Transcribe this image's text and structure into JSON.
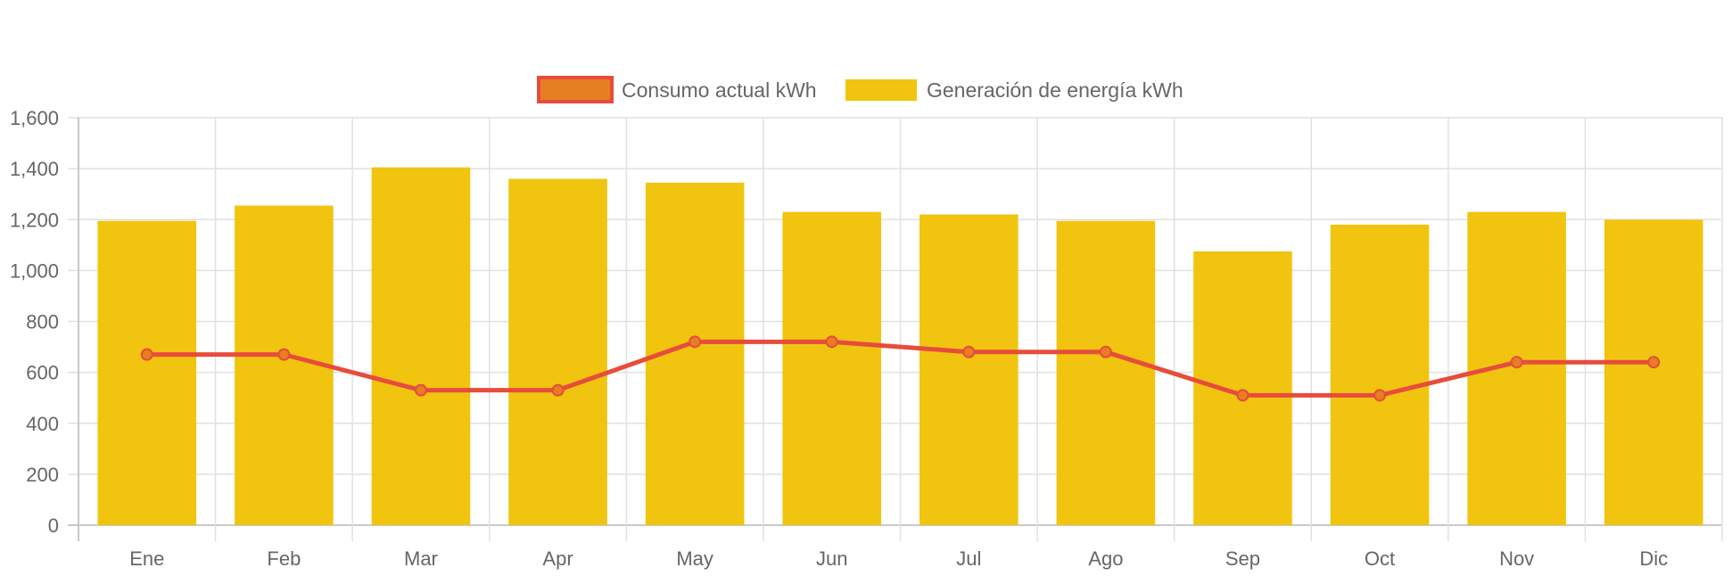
{
  "chart_data": {
    "type": "bar",
    "categories": [
      "Ene",
      "Feb",
      "Mar",
      "Apr",
      "May",
      "Jun",
      "Jul",
      "Ago",
      "Sep",
      "Oct",
      "Nov",
      "Dic"
    ],
    "series": [
      {
        "name": "Consumo actual kWh",
        "kind": "line",
        "color": "#e74c3c",
        "point_fill": "#e67e22",
        "values": [
          670,
          670,
          530,
          530,
          720,
          720,
          680,
          680,
          510,
          510,
          640,
          640
        ]
      },
      {
        "name": "Generación de energía kWh",
        "kind": "bar",
        "color": "#f1c40f",
        "values": [
          1195,
          1255,
          1405,
          1360,
          1345,
          1230,
          1220,
          1195,
          1075,
          1180,
          1230,
          1200
        ]
      }
    ],
    "y_ticks": [
      "0",
      "200",
      "400",
      "600",
      "800",
      "1,000",
      "1,200",
      "1,400",
      "1,600"
    ],
    "ylim": [
      0,
      1600
    ],
    "grid": true,
    "legend_position": "top-center"
  }
}
